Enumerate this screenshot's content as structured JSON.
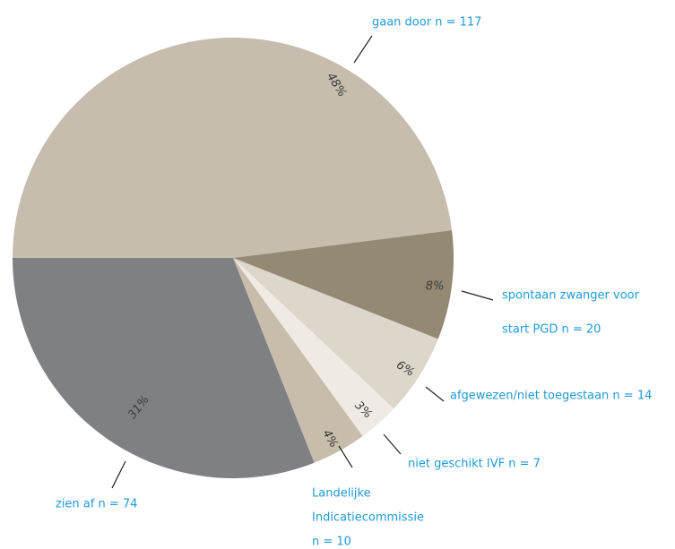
{
  "chart_data": {
    "type": "pie",
    "labels": [
      [
        "gaan door n = 117"
      ],
      [
        "spontaan zwanger voor",
        "start PGD n = 20"
      ],
      [
        "afgewezen/niet toegestaan n = 14"
      ],
      [
        "niet geschikt IVF n = 7"
      ],
      [
        "Landelijke",
        "Indicatiecommissie",
        "n = 10"
      ],
      [
        "zien af n = 74"
      ]
    ],
    "values": [
      48,
      8,
      6,
      3,
      4,
      31
    ],
    "value_labels": [
      "48%",
      "8%",
      "6%",
      "3%",
      "4%",
      "31%"
    ],
    "colors": [
      "#c6bdae",
      "#948a73",
      "#dcd6cb",
      "#efebe4",
      "#c8bdab",
      "#7f8084"
    ]
  }
}
